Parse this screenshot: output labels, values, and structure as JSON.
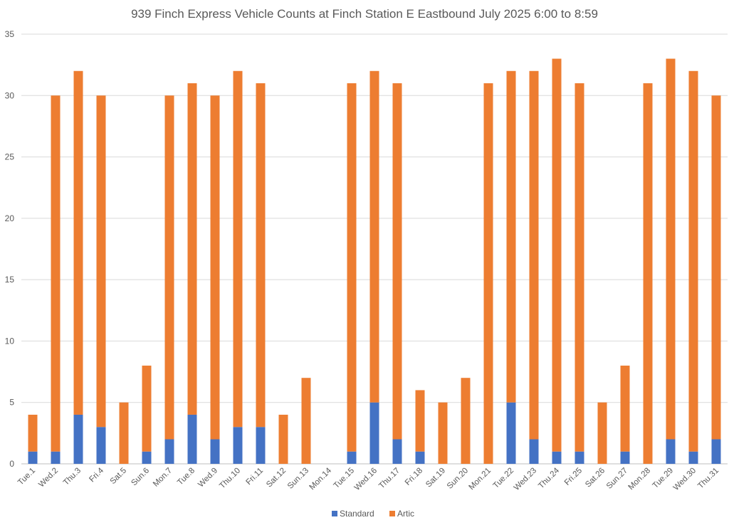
{
  "chart_data": {
    "type": "bar",
    "stacked": true,
    "title": "939 Finch Express Vehicle Counts at Finch Station E Eastbound July 2025  6:00 to 8:59",
    "xlabel": "",
    "ylabel": "",
    "ylim": [
      0,
      35
    ],
    "yticks": [
      0,
      5,
      10,
      15,
      20,
      25,
      30,
      35
    ],
    "grid": true,
    "legend_position": "bottom",
    "categories": [
      "Tue.1",
      "Wed.2",
      "Thu.3",
      "Fri.4",
      "Sat.5",
      "Sun.6",
      "Mon.7",
      "Tue.8",
      "Wed.9",
      "Thu.10",
      "Fri.11",
      "Sat.12",
      "Sun.13",
      "Mon.14",
      "Tue.15",
      "Wed.16",
      "Thu.17",
      "Fri.18",
      "Sat.19",
      "Sun.20",
      "Mon.21",
      "Tue.22",
      "Wed.23",
      "Thu.24",
      "Fri.25",
      "Sat.26",
      "Sun.27",
      "Mon.28",
      "Tue.29",
      "Wed.30",
      "Thu.31"
    ],
    "series": [
      {
        "name": "Standard",
        "color": "#4472c4",
        "values": [
          1,
          1,
          4,
          3,
          0,
          1,
          2,
          4,
          2,
          3,
          3,
          0,
          0,
          0,
          1,
          5,
          2,
          1,
          0,
          0,
          0,
          5,
          2,
          1,
          1,
          0,
          1,
          0,
          2,
          1,
          2
        ]
      },
      {
        "name": "Artic",
        "color": "#ed7d31",
        "values": [
          3,
          29,
          28,
          27,
          5,
          7,
          28,
          27,
          28,
          29,
          28,
          4,
          7,
          0,
          30,
          27,
          29,
          5,
          5,
          7,
          31,
          27,
          30,
          32,
          30,
          5,
          7,
          31,
          31,
          31,
          28
        ]
      }
    ]
  }
}
